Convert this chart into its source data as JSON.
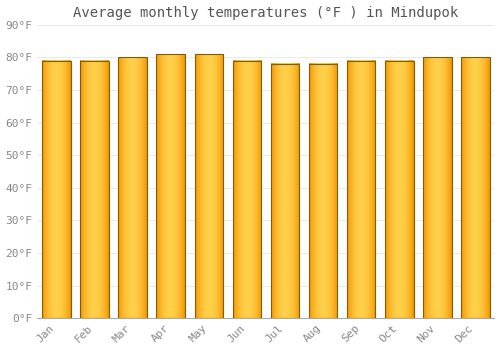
{
  "title": "Average monthly temperatures (°F ) in Mindupok",
  "months": [
    "Jan",
    "Feb",
    "Mar",
    "Apr",
    "May",
    "Jun",
    "Jul",
    "Aug",
    "Sep",
    "Oct",
    "Nov",
    "Dec"
  ],
  "values": [
    79,
    79,
    80,
    81,
    81,
    79,
    78,
    78,
    79,
    79,
    80,
    80
  ],
  "bar_color_center": "#FFD04A",
  "bar_color_edge": "#F59500",
  "bar_border_color": "#7A6000",
  "background_color": "#FFFFFF",
  "plot_bg_color": "#FFFFFF",
  "grid_color": "#E0E0E0",
  "ylim": [
    0,
    90
  ],
  "yticks": [
    0,
    10,
    20,
    30,
    40,
    50,
    60,
    70,
    80,
    90
  ],
  "ytick_labels": [
    "0°F",
    "10°F",
    "20°F",
    "30°F",
    "40°F",
    "50°F",
    "60°F",
    "70°F",
    "80°F",
    "90°F"
  ],
  "title_fontsize": 10,
  "tick_fontsize": 8,
  "font_family": "monospace",
  "tick_color": "#888888",
  "title_color": "#555555",
  "bar_width": 0.75
}
